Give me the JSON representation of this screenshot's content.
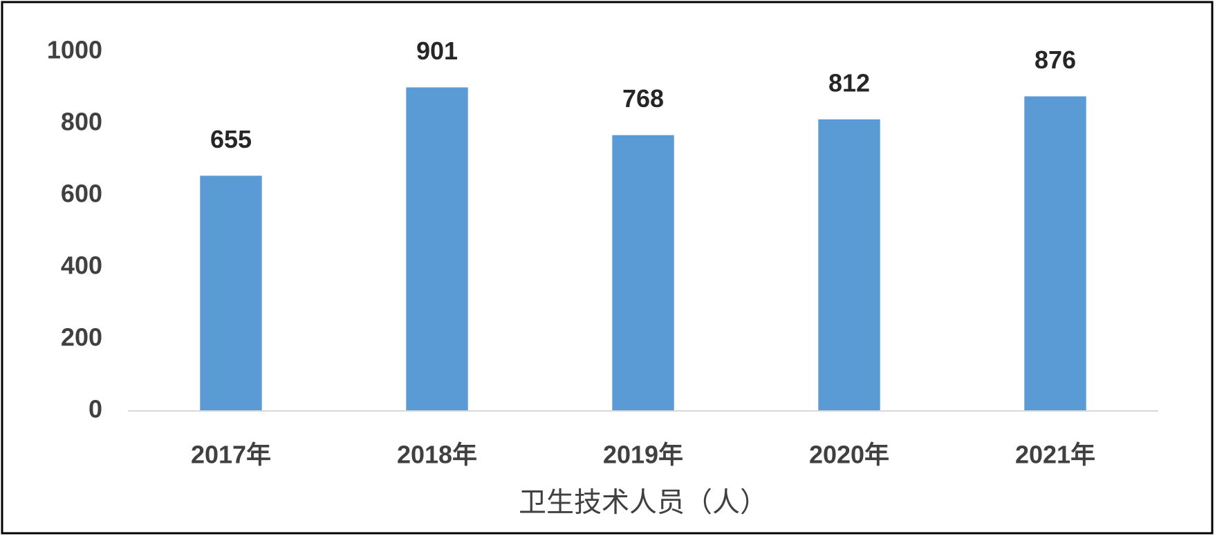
{
  "chart_data": {
    "type": "bar",
    "x_label": "卫生技术人员（人）",
    "categories": [
      "2017年",
      "2018年",
      "2019年",
      "2020年",
      "2021年"
    ],
    "values": [
      655,
      901,
      768,
      812,
      876
    ],
    "color": "#5b9bd5",
    "ylim": [
      0,
      1000
    ],
    "yticks": [
      0,
      200,
      400,
      600,
      800,
      1000
    ],
    "grid": false
  }
}
